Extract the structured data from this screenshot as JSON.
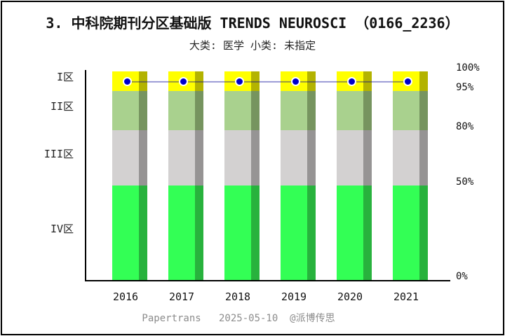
{
  "window": {
    "background_color": "#ffffff",
    "border_color": "#000000"
  },
  "chart_data": {
    "type": "bar",
    "variant": "stacked-zone-bands-with-percentile-line",
    "title": "3. 中科院期刊分区基础版 TRENDS NEUROSCI （0166_2236）",
    "subtitle": "大类: 医学 小类: 未指定",
    "footer": "Papertrans   2025-05-10  @派博传思",
    "categories": [
      "2016",
      "2017",
      "2018",
      "2019",
      "2020",
      "2021"
    ],
    "ylim": [
      0,
      100
    ],
    "grid": false,
    "legend": null,
    "zones": [
      {
        "label": "I区",
        "range_pct": [
          95,
          100
        ],
        "color": "#FFFF00",
        "shadow_color": "#B3B300"
      },
      {
        "label": "II区",
        "range_pct": [
          80,
          95
        ],
        "color": "#A9D18E",
        "shadow_color": "#76945F"
      },
      {
        "label": "III区",
        "range_pct": [
          50,
          80
        ],
        "color": "#D3D1D1",
        "shadow_color": "#969494"
      },
      {
        "label": "IV区",
        "range_pct": [
          0,
          50
        ],
        "color": "#33FF55",
        "shadow_color": "#28B23D"
      }
    ],
    "right_axis_ticks": [
      {
        "label": "100%",
        "value": 100
      },
      {
        "label": "95%",
        "value": 95
      },
      {
        "label": "80%",
        "value": 80
      },
      {
        "label": "50%",
        "value": 50
      },
      {
        "label": "0%",
        "value": 0
      }
    ],
    "series": [
      {
        "name": "journal-percentile-line",
        "type": "line",
        "marker": "circle",
        "marker_color": "#0000CC",
        "line_color": "rgba(0,0,150,0.4)",
        "values": [
          97.3,
          97.3,
          97.3,
          97.3,
          97.3,
          97.3
        ]
      }
    ]
  }
}
